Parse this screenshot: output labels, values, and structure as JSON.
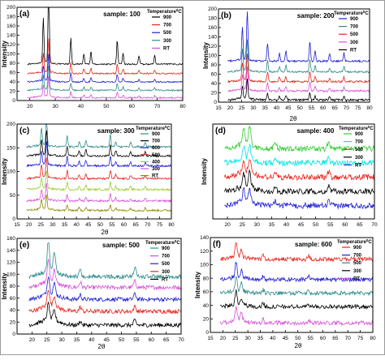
{
  "chart_data": [
    {
      "type": "line",
      "panel_label": "(a)",
      "title": "sample: 100",
      "xlabel": "",
      "ylabel": "Intensity",
      "xlim": [
        15,
        80
      ],
      "ylim": [
        0,
        200
      ],
      "xticks": [
        20,
        30,
        40,
        50,
        60,
        70,
        80
      ],
      "yticks": [
        0,
        20,
        40,
        60,
        80,
        100,
        120,
        140,
        160,
        180,
        200
      ],
      "legend_title": "Temperature",
      "legend_title_unit": "C",
      "legend_placement": "top-right",
      "noise": 1.5,
      "peak_width": 0.35,
      "peaks": [
        [
          25.3,
          1.0
        ],
        [
          27.4,
          1.8
        ],
        [
          36.1,
          0.6
        ],
        [
          41.2,
          0.25
        ],
        [
          44.0,
          0.3
        ],
        [
          54.3,
          0.55
        ],
        [
          56.6,
          0.25
        ],
        [
          62.8,
          0.2
        ],
        [
          69.0,
          0.2
        ]
      ],
      "series": [
        {
          "name": "900",
          "color": "#000000",
          "baseline": 78,
          "peak_scale": 95
        },
        {
          "name": "700",
          "color": "#e8231c",
          "baseline": 58,
          "peak_scale": 40
        },
        {
          "name": "500",
          "color": "#1f1fd6",
          "baseline": 40,
          "peak_scale": 32
        },
        {
          "name": "300",
          "color": "#2e8b8b",
          "baseline": 22,
          "peak_scale": 28
        },
        {
          "name": "RT",
          "color": "#d94fd9",
          "baseline": 6,
          "peak_scale": 24
        }
      ]
    },
    {
      "type": "line",
      "panel_label": "(b)",
      "title": "sample: 200",
      "xlabel": "2θ",
      "ylabel": "Intensity",
      "xlim": [
        15,
        80
      ],
      "ylim": [
        0,
        200
      ],
      "xticks": [
        15,
        20,
        25,
        30,
        35,
        40,
        45,
        50,
        55,
        60,
        65,
        70,
        75,
        80
      ],
      "yticks": [
        0,
        20,
        40,
        60,
        80,
        100,
        120,
        140,
        160,
        180,
        200
      ],
      "legend_title": "Temperature",
      "legend_title_unit": "C",
      "legend_placement": "top-right",
      "noise": 2.0,
      "peak_width": 0.4,
      "peaks": [
        [
          25.3,
          1.0
        ],
        [
          27.4,
          1.5
        ],
        [
          36.1,
          0.55
        ],
        [
          41.2,
          0.25
        ],
        [
          44.0,
          0.3
        ],
        [
          54.3,
          0.6
        ],
        [
          56.6,
          0.3
        ],
        [
          62.8,
          0.2
        ],
        [
          69.0,
          0.25
        ]
      ],
      "series": [
        {
          "name": "900",
          "color": "#1f1fd6",
          "baseline": 88,
          "peak_scale": 70
        },
        {
          "name": "700",
          "color": "#2e8b8b",
          "baseline": 65,
          "peak_scale": 45
        },
        {
          "name": "500",
          "color": "#e8231c",
          "baseline": 44,
          "peak_scale": 38
        },
        {
          "name": "300",
          "color": "#d94fd9",
          "baseline": 24,
          "peak_scale": 32
        },
        {
          "name": "RT",
          "color": "#000000",
          "baseline": 5,
          "peak_scale": 28
        }
      ]
    },
    {
      "type": "line",
      "panel_label": "(c)",
      "title": "sample: 300",
      "xlabel": "2θ",
      "ylabel": "Intensity",
      "xlim": [
        15,
        80
      ],
      "ylim": [
        0,
        200
      ],
      "xticks": [
        15,
        20,
        25,
        30,
        35,
        40,
        45,
        50,
        55,
        60,
        65,
        70,
        75,
        80
      ],
      "yticks": [
        0,
        50,
        100,
        150,
        200
      ],
      "legend_title": "Temperature",
      "legend_title_unit": "C",
      "legend_placement": "top-right",
      "noise": 2.0,
      "peak_width": 0.4,
      "peaks": [
        [
          25.3,
          0.9
        ],
        [
          27.4,
          1.5
        ],
        [
          36.1,
          0.6
        ],
        [
          41.2,
          0.3
        ],
        [
          44.0,
          0.35
        ],
        [
          54.3,
          0.65
        ],
        [
          56.6,
          0.3
        ],
        [
          62.8,
          0.25
        ],
        [
          69.0,
          0.25
        ]
      ],
      "series": [
        {
          "name": "900",
          "color": "#2e8b8b",
          "baseline": 152,
          "peak_scale": 40
        },
        {
          "name": "700",
          "color": "#000000",
          "baseline": 133,
          "peak_scale": 35
        },
        {
          "name": "600",
          "color": "#1f1fd6",
          "baseline": 112,
          "peak_scale": 32
        },
        {
          "name": "500",
          "color": "#e8231c",
          "baseline": 85,
          "peak_scale": 28
        },
        {
          "name": "400",
          "color": "#9acd32",
          "baseline": 62,
          "peak_scale": 25
        },
        {
          "name": "300",
          "color": "#d94fd9",
          "baseline": 38,
          "peak_scale": 22
        },
        {
          "name": "RT",
          "color": "#8b8b00",
          "baseline": 18,
          "peak_scale": 20
        }
      ]
    },
    {
      "type": "line",
      "panel_label": "(d)",
      "title": "sample: 400",
      "xlabel": "",
      "ylabel": "Intensity",
      "xlim": [
        15,
        70
      ],
      "ylim": [
        0,
        200
      ],
      "xticks": [
        20,
        25,
        30,
        35,
        40,
        45,
        50,
        55,
        60,
        65,
        70
      ],
      "yticks": [],
      "legend_title": "Temperature",
      "legend_title_unit": "C",
      "legend_placement": "top-right",
      "noise": 6.0,
      "peak_width": 0.6,
      "peaks": [
        [
          25.5,
          0.8
        ],
        [
          27.5,
          0.9
        ],
        [
          36.2,
          0.3
        ],
        [
          54.5,
          0.3
        ]
      ],
      "series": [
        {
          "name": "900",
          "color": "#33cc33",
          "baseline": 148,
          "peak_scale": 45
        },
        {
          "name": "700",
          "color": "#00e5e5",
          "baseline": 118,
          "peak_scale": 30
        },
        {
          "name": "500",
          "color": "#e8231c",
          "baseline": 88,
          "peak_scale": 35
        },
        {
          "name": "300",
          "color": "#000000",
          "baseline": 58,
          "peak_scale": 35
        },
        {
          "name": "RT",
          "color": "#1f1fd6",
          "baseline": 28,
          "peak_scale": 30
        }
      ]
    },
    {
      "type": "line",
      "panel_label": "(e)",
      "title": "sample: 500",
      "xlabel": "2θ",
      "ylabel": "Intensity",
      "xlim": [
        15,
        70
      ],
      "ylim": [
        0,
        160
      ],
      "xticks": [
        20,
        25,
        30,
        35,
        40,
        45,
        50,
        55,
        60,
        65,
        70
      ],
      "yticks": [
        0,
        20,
        40,
        60,
        80,
        100,
        120,
        140,
        160
      ],
      "legend_title": "Temperature",
      "legend_title_unit": "C",
      "legend_placement": "top-right",
      "noise": 3.5,
      "peak_width": 0.55,
      "peaks": [
        [
          25.5,
          1.0
        ],
        [
          27.5,
          0.6
        ],
        [
          36.2,
          0.25
        ],
        [
          54.5,
          0.3
        ]
      ],
      "series": [
        {
          "name": "900",
          "color": "#2e8b8b",
          "baseline": 96,
          "peak_scale": 50
        },
        {
          "name": "700",
          "color": "#d94fd9",
          "baseline": 78,
          "peak_scale": 35
        },
        {
          "name": "500",
          "color": "#1f1fd6",
          "baseline": 58,
          "peak_scale": 30
        },
        {
          "name": "300",
          "color": "#e8231c",
          "baseline": 38,
          "peak_scale": 28
        },
        {
          "name": "RT",
          "color": "#000000",
          "baseline": 15,
          "peak_scale": 26
        }
      ]
    },
    {
      "type": "line",
      "panel_label": "(f)",
      "title": "sample: 600",
      "xlabel": "2θ",
      "ylabel": "Intensity",
      "xlim": [
        15,
        80
      ],
      "ylim": [
        0,
        140
      ],
      "xticks": [
        15,
        20,
        25,
        30,
        35,
        40,
        45,
        50,
        55,
        60,
        65,
        70,
        75,
        80
      ],
      "yticks": [
        0,
        20,
        40,
        60,
        80,
        100,
        120,
        140
      ],
      "legend_title": "Temperature",
      "legend_title_unit": "C",
      "legend_placement": "top-right",
      "noise": 3.0,
      "peak_width": 0.55,
      "peaks": [
        [
          25.3,
          1.0
        ],
        [
          27.4,
          0.5
        ],
        [
          36.1,
          0.25
        ],
        [
          54.3,
          0.25
        ]
      ],
      "series": [
        {
          "name": "900",
          "color": "#e8231c",
          "baseline": 108,
          "peak_scale": 22
        },
        {
          "name": "700",
          "color": "#1f1fd6",
          "baseline": 78,
          "peak_scale": 22
        },
        {
          "name": "500",
          "color": "#2e8b8b",
          "baseline": 58,
          "peak_scale": 22
        },
        {
          "name": "300",
          "color": "#000000",
          "baseline": 38,
          "peak_scale": 20
        },
        {
          "name": "RT",
          "color": "#d94fd9",
          "baseline": 14,
          "peak_scale": 22
        }
      ]
    }
  ]
}
